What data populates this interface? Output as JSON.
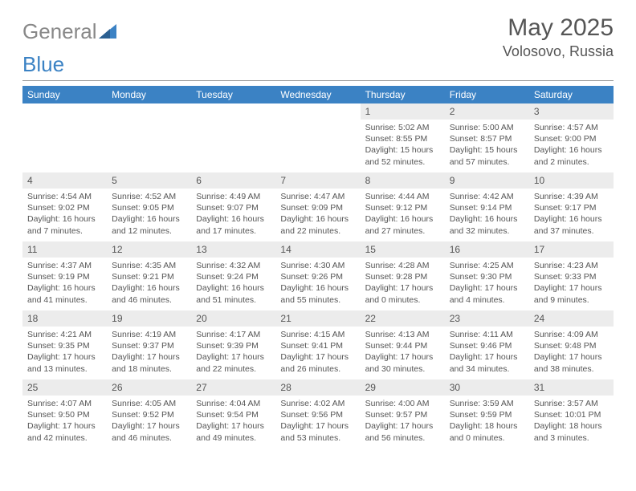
{
  "brand": {
    "part1": "General",
    "part2": "Blue"
  },
  "title": "May 2025",
  "location": "Volosovo, Russia",
  "colors": {
    "header_bg": "#3b82c4",
    "header_fg": "#ffffff",
    "daynum_bg": "#ececec",
    "text": "#555555",
    "logo_gray": "#888888",
    "logo_blue": "#3b82c4"
  },
  "weekdays": [
    "Sunday",
    "Monday",
    "Tuesday",
    "Wednesday",
    "Thursday",
    "Friday",
    "Saturday"
  ],
  "weeks": [
    [
      {
        "n": "",
        "sr": "",
        "ss": "",
        "dl": ""
      },
      {
        "n": "",
        "sr": "",
        "ss": "",
        "dl": ""
      },
      {
        "n": "",
        "sr": "",
        "ss": "",
        "dl": ""
      },
      {
        "n": "",
        "sr": "",
        "ss": "",
        "dl": ""
      },
      {
        "n": "1",
        "sr": "Sunrise: 5:02 AM",
        "ss": "Sunset: 8:55 PM",
        "dl": "Daylight: 15 hours and 52 minutes."
      },
      {
        "n": "2",
        "sr": "Sunrise: 5:00 AM",
        "ss": "Sunset: 8:57 PM",
        "dl": "Daylight: 15 hours and 57 minutes."
      },
      {
        "n": "3",
        "sr": "Sunrise: 4:57 AM",
        "ss": "Sunset: 9:00 PM",
        "dl": "Daylight: 16 hours and 2 minutes."
      }
    ],
    [
      {
        "n": "4",
        "sr": "Sunrise: 4:54 AM",
        "ss": "Sunset: 9:02 PM",
        "dl": "Daylight: 16 hours and 7 minutes."
      },
      {
        "n": "5",
        "sr": "Sunrise: 4:52 AM",
        "ss": "Sunset: 9:05 PM",
        "dl": "Daylight: 16 hours and 12 minutes."
      },
      {
        "n": "6",
        "sr": "Sunrise: 4:49 AM",
        "ss": "Sunset: 9:07 PM",
        "dl": "Daylight: 16 hours and 17 minutes."
      },
      {
        "n": "7",
        "sr": "Sunrise: 4:47 AM",
        "ss": "Sunset: 9:09 PM",
        "dl": "Daylight: 16 hours and 22 minutes."
      },
      {
        "n": "8",
        "sr": "Sunrise: 4:44 AM",
        "ss": "Sunset: 9:12 PM",
        "dl": "Daylight: 16 hours and 27 minutes."
      },
      {
        "n": "9",
        "sr": "Sunrise: 4:42 AM",
        "ss": "Sunset: 9:14 PM",
        "dl": "Daylight: 16 hours and 32 minutes."
      },
      {
        "n": "10",
        "sr": "Sunrise: 4:39 AM",
        "ss": "Sunset: 9:17 PM",
        "dl": "Daylight: 16 hours and 37 minutes."
      }
    ],
    [
      {
        "n": "11",
        "sr": "Sunrise: 4:37 AM",
        "ss": "Sunset: 9:19 PM",
        "dl": "Daylight: 16 hours and 41 minutes."
      },
      {
        "n": "12",
        "sr": "Sunrise: 4:35 AM",
        "ss": "Sunset: 9:21 PM",
        "dl": "Daylight: 16 hours and 46 minutes."
      },
      {
        "n": "13",
        "sr": "Sunrise: 4:32 AM",
        "ss": "Sunset: 9:24 PM",
        "dl": "Daylight: 16 hours and 51 minutes."
      },
      {
        "n": "14",
        "sr": "Sunrise: 4:30 AM",
        "ss": "Sunset: 9:26 PM",
        "dl": "Daylight: 16 hours and 55 minutes."
      },
      {
        "n": "15",
        "sr": "Sunrise: 4:28 AM",
        "ss": "Sunset: 9:28 PM",
        "dl": "Daylight: 17 hours and 0 minutes."
      },
      {
        "n": "16",
        "sr": "Sunrise: 4:25 AM",
        "ss": "Sunset: 9:30 PM",
        "dl": "Daylight: 17 hours and 4 minutes."
      },
      {
        "n": "17",
        "sr": "Sunrise: 4:23 AM",
        "ss": "Sunset: 9:33 PM",
        "dl": "Daylight: 17 hours and 9 minutes."
      }
    ],
    [
      {
        "n": "18",
        "sr": "Sunrise: 4:21 AM",
        "ss": "Sunset: 9:35 PM",
        "dl": "Daylight: 17 hours and 13 minutes."
      },
      {
        "n": "19",
        "sr": "Sunrise: 4:19 AM",
        "ss": "Sunset: 9:37 PM",
        "dl": "Daylight: 17 hours and 18 minutes."
      },
      {
        "n": "20",
        "sr": "Sunrise: 4:17 AM",
        "ss": "Sunset: 9:39 PM",
        "dl": "Daylight: 17 hours and 22 minutes."
      },
      {
        "n": "21",
        "sr": "Sunrise: 4:15 AM",
        "ss": "Sunset: 9:41 PM",
        "dl": "Daylight: 17 hours and 26 minutes."
      },
      {
        "n": "22",
        "sr": "Sunrise: 4:13 AM",
        "ss": "Sunset: 9:44 PM",
        "dl": "Daylight: 17 hours and 30 minutes."
      },
      {
        "n": "23",
        "sr": "Sunrise: 4:11 AM",
        "ss": "Sunset: 9:46 PM",
        "dl": "Daylight: 17 hours and 34 minutes."
      },
      {
        "n": "24",
        "sr": "Sunrise: 4:09 AM",
        "ss": "Sunset: 9:48 PM",
        "dl": "Daylight: 17 hours and 38 minutes."
      }
    ],
    [
      {
        "n": "25",
        "sr": "Sunrise: 4:07 AM",
        "ss": "Sunset: 9:50 PM",
        "dl": "Daylight: 17 hours and 42 minutes."
      },
      {
        "n": "26",
        "sr": "Sunrise: 4:05 AM",
        "ss": "Sunset: 9:52 PM",
        "dl": "Daylight: 17 hours and 46 minutes."
      },
      {
        "n": "27",
        "sr": "Sunrise: 4:04 AM",
        "ss": "Sunset: 9:54 PM",
        "dl": "Daylight: 17 hours and 49 minutes."
      },
      {
        "n": "28",
        "sr": "Sunrise: 4:02 AM",
        "ss": "Sunset: 9:56 PM",
        "dl": "Daylight: 17 hours and 53 minutes."
      },
      {
        "n": "29",
        "sr": "Sunrise: 4:00 AM",
        "ss": "Sunset: 9:57 PM",
        "dl": "Daylight: 17 hours and 56 minutes."
      },
      {
        "n": "30",
        "sr": "Sunrise: 3:59 AM",
        "ss": "Sunset: 9:59 PM",
        "dl": "Daylight: 18 hours and 0 minutes."
      },
      {
        "n": "31",
        "sr": "Sunrise: 3:57 AM",
        "ss": "Sunset: 10:01 PM",
        "dl": "Daylight: 18 hours and 3 minutes."
      }
    ]
  ]
}
